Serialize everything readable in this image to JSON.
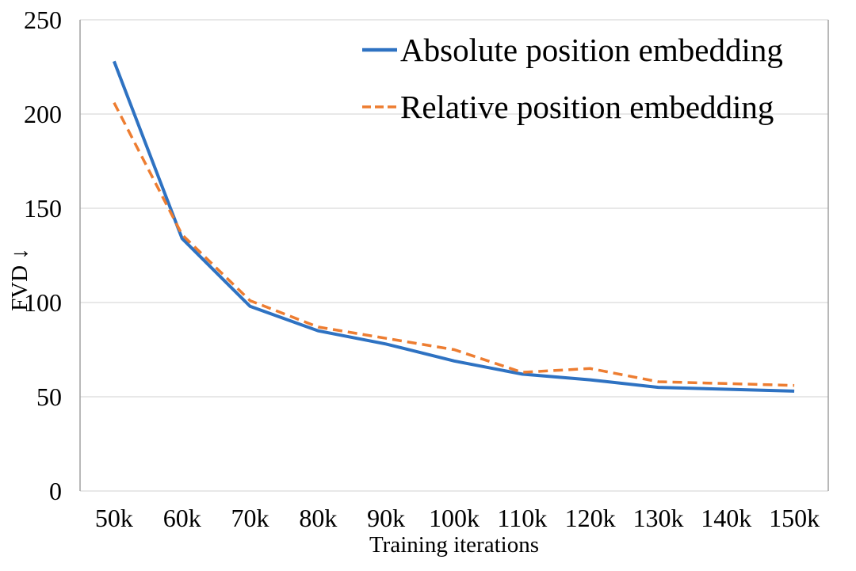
{
  "chart_data": {
    "type": "line",
    "title": "",
    "xlabel": "Training iterations",
    "ylabel": "FVD ↓",
    "categories": [
      "50k",
      "60k",
      "70k",
      "80k",
      "90k",
      "100k",
      "110k",
      "120k",
      "130k",
      "140k",
      "150k"
    ],
    "series": [
      {
        "name": "Absolute position embedding",
        "color": "#2E72C2",
        "line_style": "solid",
        "values": [
          228,
          134,
          98,
          85,
          78,
          69,
          62,
          59,
          55,
          54,
          53
        ]
      },
      {
        "name": "Relative position embedding",
        "color": "#ED7D31",
        "line_style": "dashed",
        "values": [
          206,
          136,
          101,
          87,
          81,
          75,
          63,
          65,
          58,
          57,
          56
        ]
      }
    ],
    "ylim": [
      0,
      250
    ],
    "yticks": [
      0,
      50,
      100,
      150,
      200,
      250
    ],
    "grid": true,
    "legend_position": "top-right-inside",
    "grid_color": "#D9D9D9",
    "axis_color": "#A6A6A6",
    "background_color": "#FFFFFF"
  }
}
